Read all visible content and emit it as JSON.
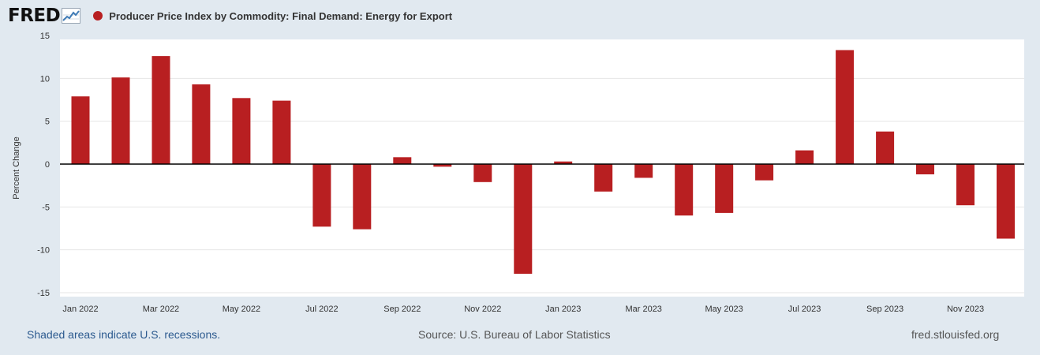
{
  "header": {
    "logo_text": "FRED",
    "logo_icon": "trend-line-icon",
    "series_title": "Producer Price Index by Commodity: Final Demand: Energy for Export"
  },
  "footer": {
    "recession_note": "Shaded areas indicate U.S. recessions.",
    "source": "Source: U.S. Bureau of Labor Statistics",
    "site": "fred.stlouisfed.org"
  },
  "colors": {
    "bar": "#b81f21",
    "plot_bg": "#ffffff",
    "page_bg": "#e1e9f0",
    "grid": "#e6e6e6",
    "zero_line": "#000000"
  },
  "chart_data": {
    "type": "bar",
    "title": "Producer Price Index by Commodity: Final Demand: Energy for Export",
    "ylabel": "Percent Change",
    "xlabel": "",
    "ylim": [
      -15,
      15
    ],
    "y_ticks": [
      15,
      10,
      5,
      0,
      -5,
      -10,
      -15
    ],
    "categories": [
      "Jan 2022",
      "Feb 2022",
      "Mar 2022",
      "Apr 2022",
      "May 2022",
      "Jun 2022",
      "Jul 2022",
      "Aug 2022",
      "Sep 2022",
      "Oct 2022",
      "Nov 2022",
      "Dec 2022",
      "Jan 2023",
      "Feb 2023",
      "Mar 2023",
      "Apr 2023",
      "May 2023",
      "Jun 2023",
      "Jul 2023",
      "Aug 2023",
      "Sep 2023",
      "Oct 2023",
      "Nov 2023",
      "Dec 2023"
    ],
    "x_tick_labels": [
      "Jan 2022",
      "Mar 2022",
      "May 2022",
      "Jul 2022",
      "Sep 2022",
      "Nov 2022",
      "Jan 2023",
      "Mar 2023",
      "May 2023",
      "Jul 2023",
      "Sep 2023",
      "Nov 2023"
    ],
    "series": [
      {
        "name": "Producer Price Index by Commodity: Final Demand: Energy for Export",
        "values": [
          7.9,
          10.1,
          12.6,
          9.3,
          7.7,
          7.4,
          -7.3,
          -7.6,
          0.8,
          -0.3,
          -2.1,
          -12.8,
          0.3,
          -3.2,
          -1.6,
          -6.0,
          -5.7,
          -1.9,
          1.6,
          13.3,
          3.8,
          -1.2,
          -4.8,
          -8.7
        ]
      }
    ]
  }
}
